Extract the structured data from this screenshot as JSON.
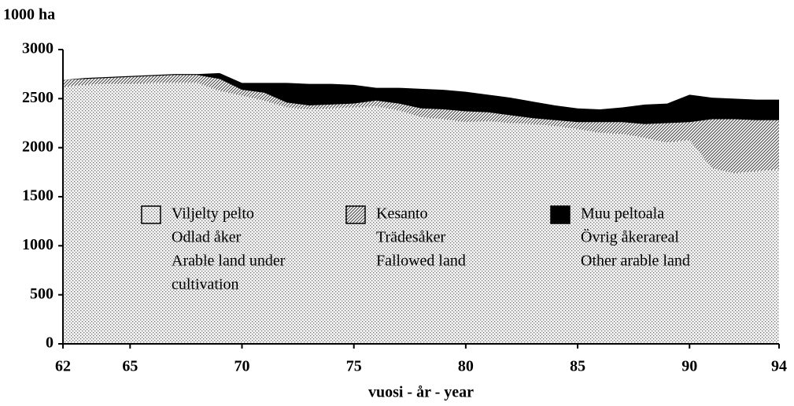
{
  "chart_data": {
    "type": "stacked_area",
    "y_axis_label": "1000 ha",
    "x_axis_label": "vuosi - år - year",
    "x": [
      62,
      63,
      64,
      65,
      66,
      67,
      68,
      69,
      70,
      71,
      72,
      73,
      74,
      75,
      76,
      77,
      78,
      79,
      80,
      81,
      82,
      83,
      84,
      85,
      86,
      87,
      88,
      89,
      90,
      91,
      92,
      93,
      94
    ],
    "xlim": [
      62,
      94
    ],
    "xticks": [
      62,
      65,
      70,
      75,
      80,
      85,
      90,
      94
    ],
    "ylim": [
      0,
      3000
    ],
    "yticks": [
      0,
      500,
      1000,
      1500,
      2000,
      2500,
      3000
    ],
    "series": [
      {
        "name": "Viljelty pelto",
        "name_lines": [
          "Odlad åker",
          "Arable land under",
          "cultivation"
        ],
        "color": "#d8d8d8",
        "pattern": "dots",
        "values": [
          2620,
          2640,
          2650,
          2650,
          2660,
          2660,
          2660,
          2580,
          2530,
          2480,
          2410,
          2390,
          2400,
          2410,
          2420,
          2380,
          2310,
          2290,
          2260,
          2270,
          2250,
          2240,
          2220,
          2190,
          2150,
          2140,
          2100,
          2050,
          2080,
          1790,
          1740,
          1760,
          1780
        ]
      },
      {
        "name": "Kesanto",
        "name_lines": [
          "Trädesåker",
          "Fallowed land"
        ],
        "color": "#555555",
        "pattern": "hatch",
        "values": [
          70,
          60,
          60,
          70,
          70,
          80,
          80,
          120,
          60,
          80,
          50,
          40,
          40,
          40,
          60,
          70,
          90,
          100,
          110,
          90,
          80,
          60,
          60,
          70,
          110,
          120,
          140,
          200,
          180,
          500,
          550,
          520,
          500
        ]
      },
      {
        "name": "Muu peltoala",
        "name_lines": [
          "Övrig åkerareal",
          "Other arable land"
        ],
        "color": "#000000",
        "pattern": "solid",
        "values": [
          0,
          10,
          10,
          10,
          10,
          10,
          10,
          60,
          70,
          100,
          200,
          220,
          210,
          190,
          130,
          160,
          200,
          200,
          200,
          180,
          180,
          170,
          150,
          140,
          130,
          150,
          200,
          200,
          280,
          220,
          210,
          210,
          210
        ]
      }
    ]
  }
}
